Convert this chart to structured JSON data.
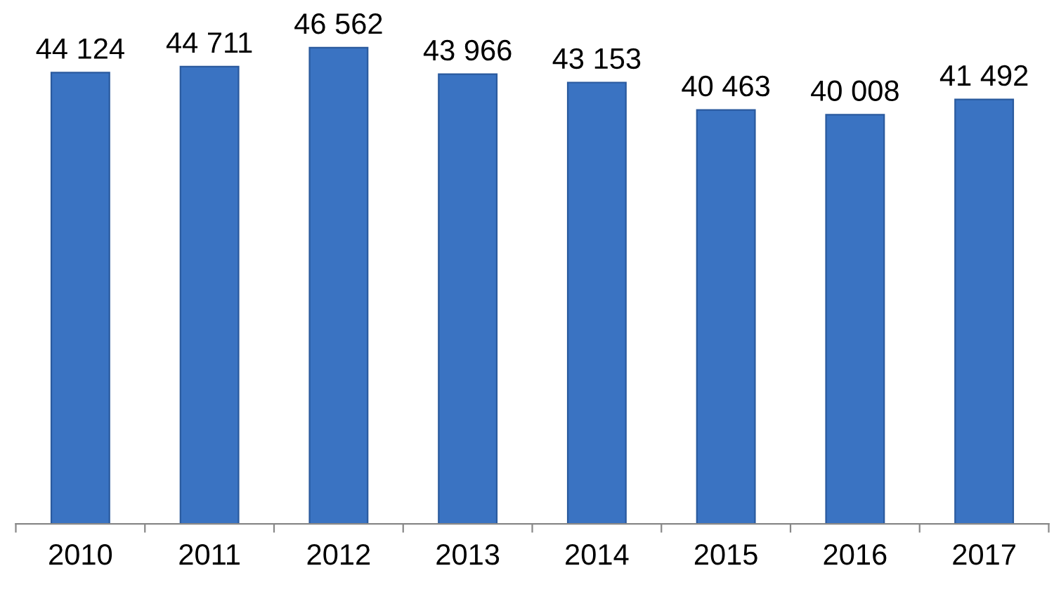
{
  "chart_data": {
    "type": "bar",
    "categories": [
      "2010",
      "2011",
      "2012",
      "2013",
      "2014",
      "2015",
      "2016",
      "2017"
    ],
    "values": [
      44124,
      44711,
      46562,
      43966,
      43153,
      40463,
      40008,
      41492
    ],
    "value_labels": [
      "44 124",
      "44 711",
      "46 562",
      "43 966",
      "43 153",
      "40 463",
      "40 008",
      "41 492"
    ],
    "color": "#3a73c2",
    "grid": false,
    "legend": false
  }
}
